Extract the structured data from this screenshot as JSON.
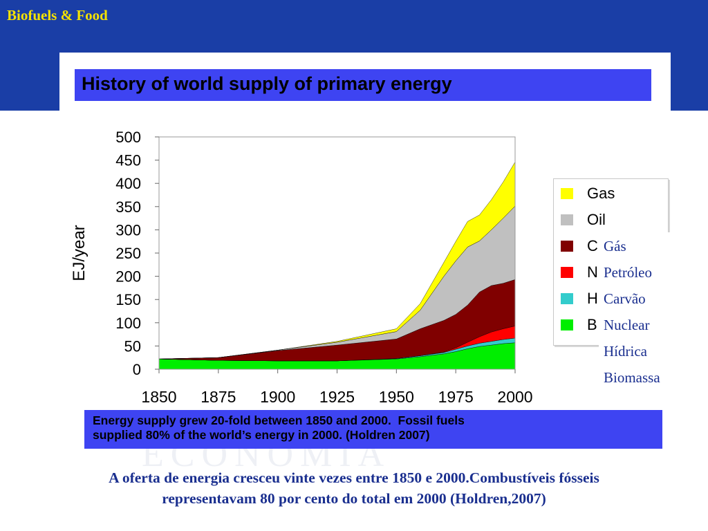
{
  "slide": {
    "title": "Biofuels & Food",
    "caption_pt_line1": "A oferta de energia cresceu vinte vezes entre 1850 e 2000.Combustíveis fósseis",
    "caption_pt_line2": "representavam 80 por cento do total em 2000 (Holdren,2007)",
    "watermark": "ECONOMIA"
  },
  "figure": {
    "title": "History of world supply of primary energy",
    "caption_line1": "Energy supply grew 20-fold between 1850 and 2000.  Fossil fuels",
    "caption_line2": "supplied 80% of the world’s energy in 2000. (Holdren 2007)"
  },
  "legend": {
    "items": [
      {
        "label": "Gas",
        "color": "#ffff00"
      },
      {
        "label": "Oil",
        "color": "#c0c0c0"
      },
      {
        "label": "C",
        "color": "#800000"
      },
      {
        "label": "N",
        "color": "#ff0000"
      },
      {
        "label": "H",
        "color": "#33cccc"
      },
      {
        "label": "B",
        "color": "#00ee00"
      }
    ]
  },
  "pt_labels": [
    "Gás",
    "Petróleo",
    "Carvão",
    "Nuclear",
    "Hídrica",
    "Biomassa"
  ],
  "chart_data": {
    "type": "area",
    "ylabel": "EJ/year",
    "xlabel": "",
    "xlim": [
      1850,
      2000
    ],
    "ylim": [
      0,
      500
    ],
    "x_ticks": [
      1850,
      1875,
      1900,
      1925,
      1950,
      1975,
      2000
    ],
    "y_ticks": [
      0,
      50,
      100,
      150,
      200,
      250,
      300,
      350,
      400,
      450,
      500
    ],
    "grid": false,
    "legend_position": "right",
    "x": [
      1850,
      1875,
      1900,
      1925,
      1950,
      1960,
      1970,
      1975,
      1980,
      1985,
      1990,
      1995,
      2000
    ],
    "series": [
      {
        "name": "B",
        "color": "#00ee00",
        "values": [
          22,
          19,
          18,
          18,
          22,
          27,
          33,
          38,
          44,
          49,
          52,
          55,
          57
        ]
      },
      {
        "name": "H",
        "color": "#33cccc",
        "values": [
          0,
          0,
          0,
          0,
          1,
          2,
          3,
          5,
          6,
          7,
          8,
          9,
          10
        ]
      },
      {
        "name": "N",
        "color": "#ff0000",
        "values": [
          0,
          0,
          0,
          0,
          0,
          0,
          1,
          3,
          8,
          14,
          20,
          23,
          26
        ]
      },
      {
        "name": "C",
        "color": "#800000",
        "values": [
          0,
          6,
          22,
          34,
          42,
          58,
          68,
          72,
          80,
          96,
          100,
          98,
          100
        ]
      },
      {
        "name": "Oil",
        "color": "#c0c0c0",
        "values": [
          0,
          0,
          1,
          6,
          16,
          40,
          95,
          115,
          125,
          110,
          120,
          140,
          158
        ]
      },
      {
        "name": "Gas",
        "color": "#ffff00",
        "values": [
          0,
          0,
          0,
          2,
          6,
          14,
          30,
          42,
          55,
          56,
          65,
          78,
          95
        ]
      }
    ]
  }
}
